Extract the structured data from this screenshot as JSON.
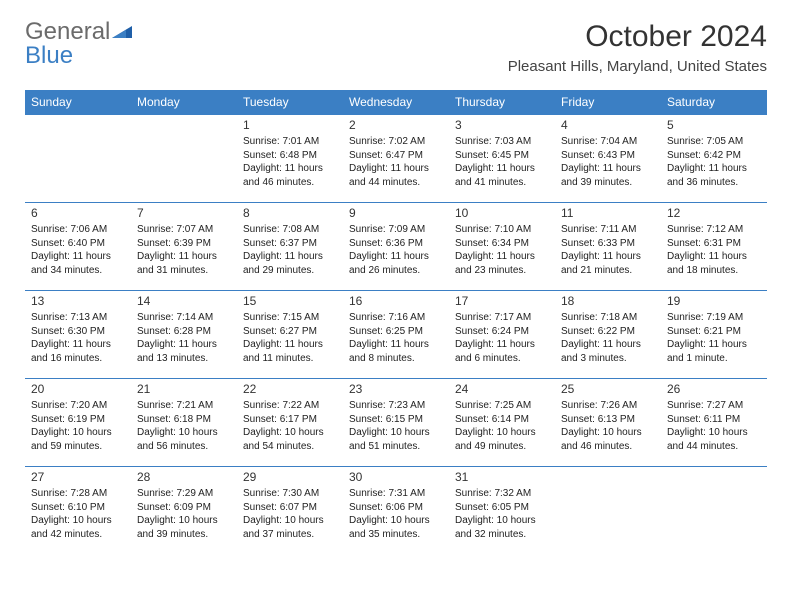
{
  "header": {
    "logo_general": "General",
    "logo_blue": "Blue",
    "month_title": "October 2024",
    "location": "Pleasant Hills, Maryland, United States"
  },
  "calendar": {
    "type": "table",
    "header_bg": "#3b7fc4",
    "header_text_color": "#ffffff",
    "border_color": "#3b7fc4",
    "columns": [
      "Sunday",
      "Monday",
      "Tuesday",
      "Wednesday",
      "Thursday",
      "Friday",
      "Saturday"
    ],
    "weeks": [
      [
        null,
        null,
        {
          "d": "1",
          "sr": "Sunrise: 7:01 AM",
          "ss": "Sunset: 6:48 PM",
          "dl1": "Daylight: 11 hours",
          "dl2": "and 46 minutes."
        },
        {
          "d": "2",
          "sr": "Sunrise: 7:02 AM",
          "ss": "Sunset: 6:47 PM",
          "dl1": "Daylight: 11 hours",
          "dl2": "and 44 minutes."
        },
        {
          "d": "3",
          "sr": "Sunrise: 7:03 AM",
          "ss": "Sunset: 6:45 PM",
          "dl1": "Daylight: 11 hours",
          "dl2": "and 41 minutes."
        },
        {
          "d": "4",
          "sr": "Sunrise: 7:04 AM",
          "ss": "Sunset: 6:43 PM",
          "dl1": "Daylight: 11 hours",
          "dl2": "and 39 minutes."
        },
        {
          "d": "5",
          "sr": "Sunrise: 7:05 AM",
          "ss": "Sunset: 6:42 PM",
          "dl1": "Daylight: 11 hours",
          "dl2": "and 36 minutes."
        }
      ],
      [
        {
          "d": "6",
          "sr": "Sunrise: 7:06 AM",
          "ss": "Sunset: 6:40 PM",
          "dl1": "Daylight: 11 hours",
          "dl2": "and 34 minutes."
        },
        {
          "d": "7",
          "sr": "Sunrise: 7:07 AM",
          "ss": "Sunset: 6:39 PM",
          "dl1": "Daylight: 11 hours",
          "dl2": "and 31 minutes."
        },
        {
          "d": "8",
          "sr": "Sunrise: 7:08 AM",
          "ss": "Sunset: 6:37 PM",
          "dl1": "Daylight: 11 hours",
          "dl2": "and 29 minutes."
        },
        {
          "d": "9",
          "sr": "Sunrise: 7:09 AM",
          "ss": "Sunset: 6:36 PM",
          "dl1": "Daylight: 11 hours",
          "dl2": "and 26 minutes."
        },
        {
          "d": "10",
          "sr": "Sunrise: 7:10 AM",
          "ss": "Sunset: 6:34 PM",
          "dl1": "Daylight: 11 hours",
          "dl2": "and 23 minutes."
        },
        {
          "d": "11",
          "sr": "Sunrise: 7:11 AM",
          "ss": "Sunset: 6:33 PM",
          "dl1": "Daylight: 11 hours",
          "dl2": "and 21 minutes."
        },
        {
          "d": "12",
          "sr": "Sunrise: 7:12 AM",
          "ss": "Sunset: 6:31 PM",
          "dl1": "Daylight: 11 hours",
          "dl2": "and 18 minutes."
        }
      ],
      [
        {
          "d": "13",
          "sr": "Sunrise: 7:13 AM",
          "ss": "Sunset: 6:30 PM",
          "dl1": "Daylight: 11 hours",
          "dl2": "and 16 minutes."
        },
        {
          "d": "14",
          "sr": "Sunrise: 7:14 AM",
          "ss": "Sunset: 6:28 PM",
          "dl1": "Daylight: 11 hours",
          "dl2": "and 13 minutes."
        },
        {
          "d": "15",
          "sr": "Sunrise: 7:15 AM",
          "ss": "Sunset: 6:27 PM",
          "dl1": "Daylight: 11 hours",
          "dl2": "and 11 minutes."
        },
        {
          "d": "16",
          "sr": "Sunrise: 7:16 AM",
          "ss": "Sunset: 6:25 PM",
          "dl1": "Daylight: 11 hours",
          "dl2": "and 8 minutes."
        },
        {
          "d": "17",
          "sr": "Sunrise: 7:17 AM",
          "ss": "Sunset: 6:24 PM",
          "dl1": "Daylight: 11 hours",
          "dl2": "and 6 minutes."
        },
        {
          "d": "18",
          "sr": "Sunrise: 7:18 AM",
          "ss": "Sunset: 6:22 PM",
          "dl1": "Daylight: 11 hours",
          "dl2": "and 3 minutes."
        },
        {
          "d": "19",
          "sr": "Sunrise: 7:19 AM",
          "ss": "Sunset: 6:21 PM",
          "dl1": "Daylight: 11 hours",
          "dl2": "and 1 minute."
        }
      ],
      [
        {
          "d": "20",
          "sr": "Sunrise: 7:20 AM",
          "ss": "Sunset: 6:19 PM",
          "dl1": "Daylight: 10 hours",
          "dl2": "and 59 minutes."
        },
        {
          "d": "21",
          "sr": "Sunrise: 7:21 AM",
          "ss": "Sunset: 6:18 PM",
          "dl1": "Daylight: 10 hours",
          "dl2": "and 56 minutes."
        },
        {
          "d": "22",
          "sr": "Sunrise: 7:22 AM",
          "ss": "Sunset: 6:17 PM",
          "dl1": "Daylight: 10 hours",
          "dl2": "and 54 minutes."
        },
        {
          "d": "23",
          "sr": "Sunrise: 7:23 AM",
          "ss": "Sunset: 6:15 PM",
          "dl1": "Daylight: 10 hours",
          "dl2": "and 51 minutes."
        },
        {
          "d": "24",
          "sr": "Sunrise: 7:25 AM",
          "ss": "Sunset: 6:14 PM",
          "dl1": "Daylight: 10 hours",
          "dl2": "and 49 minutes."
        },
        {
          "d": "25",
          "sr": "Sunrise: 7:26 AM",
          "ss": "Sunset: 6:13 PM",
          "dl1": "Daylight: 10 hours",
          "dl2": "and 46 minutes."
        },
        {
          "d": "26",
          "sr": "Sunrise: 7:27 AM",
          "ss": "Sunset: 6:11 PM",
          "dl1": "Daylight: 10 hours",
          "dl2": "and 44 minutes."
        }
      ],
      [
        {
          "d": "27",
          "sr": "Sunrise: 7:28 AM",
          "ss": "Sunset: 6:10 PM",
          "dl1": "Daylight: 10 hours",
          "dl2": "and 42 minutes."
        },
        {
          "d": "28",
          "sr": "Sunrise: 7:29 AM",
          "ss": "Sunset: 6:09 PM",
          "dl1": "Daylight: 10 hours",
          "dl2": "and 39 minutes."
        },
        {
          "d": "29",
          "sr": "Sunrise: 7:30 AM",
          "ss": "Sunset: 6:07 PM",
          "dl1": "Daylight: 10 hours",
          "dl2": "and 37 minutes."
        },
        {
          "d": "30",
          "sr": "Sunrise: 7:31 AM",
          "ss": "Sunset: 6:06 PM",
          "dl1": "Daylight: 10 hours",
          "dl2": "and 35 minutes."
        },
        {
          "d": "31",
          "sr": "Sunrise: 7:32 AM",
          "ss": "Sunset: 6:05 PM",
          "dl1": "Daylight: 10 hours",
          "dl2": "and 32 minutes."
        },
        null,
        null
      ]
    ]
  }
}
